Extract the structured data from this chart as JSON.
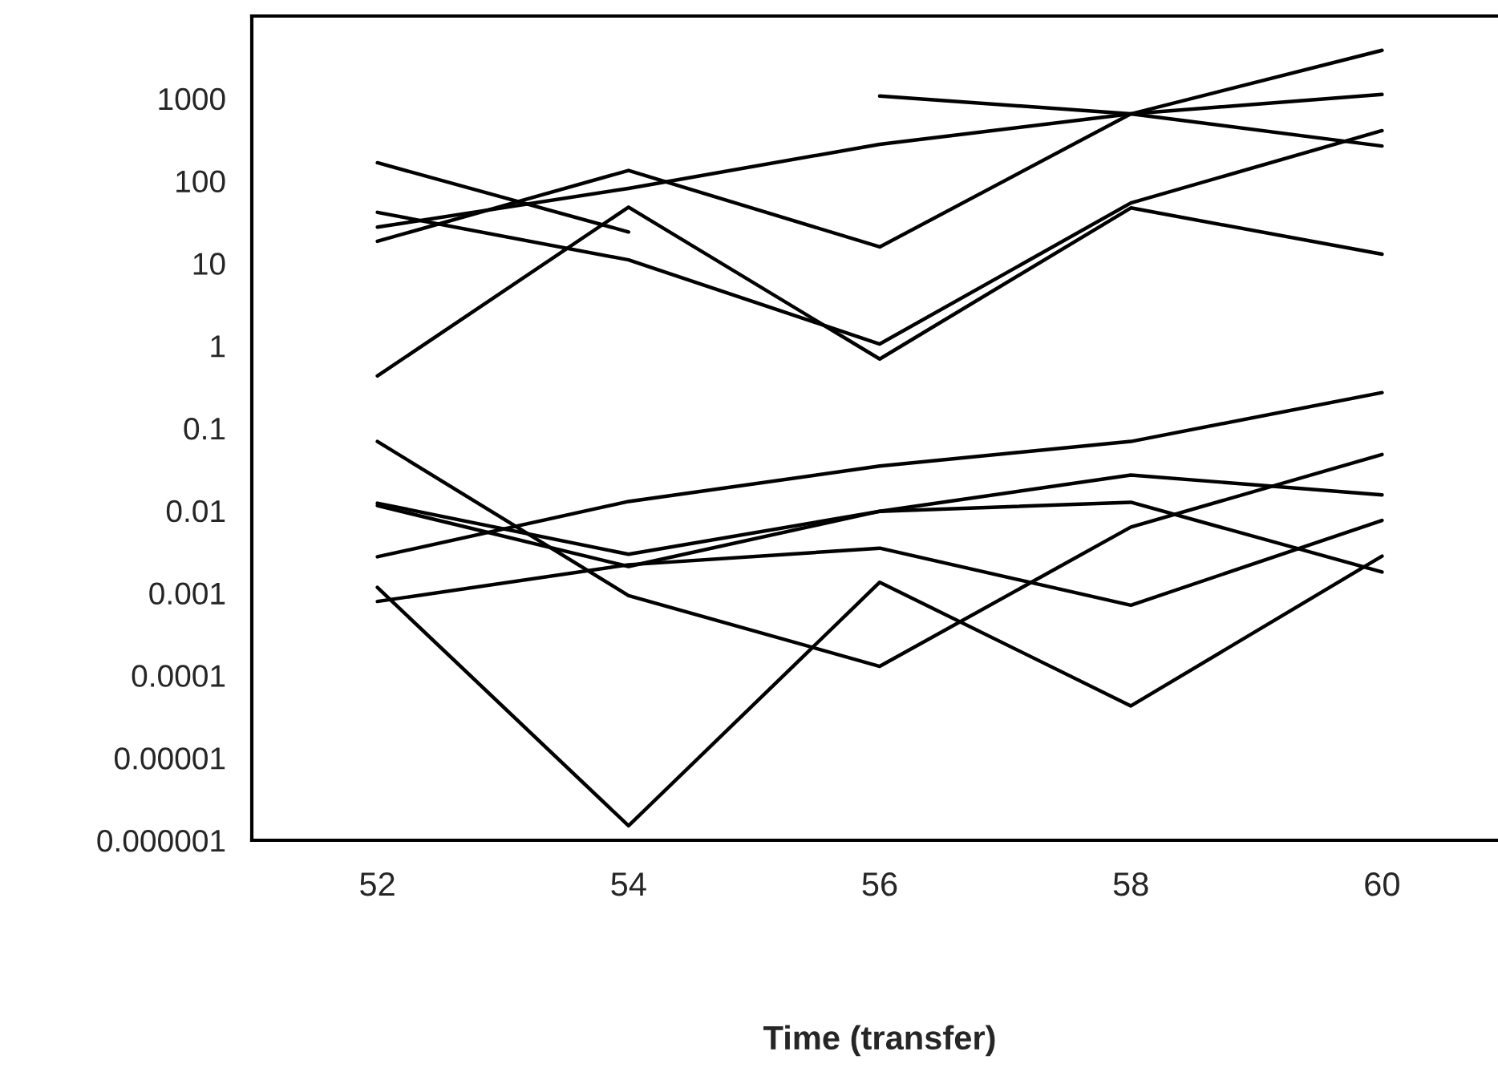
{
  "chart_data": {
    "type": "line",
    "xlabel": "Time (transfer)",
    "categories": [
      "52",
      "54",
      "56",
      "58",
      "60"
    ],
    "log": "y",
    "ylim": [
      1e-06,
      10000
    ],
    "yticks": [
      {
        "value": 1e-06,
        "label": "0.000001"
      },
      {
        "value": 1e-05,
        "label": "0.00001"
      },
      {
        "value": 0.0001,
        "label": "0.0001"
      },
      {
        "value": 0.001,
        "label": "0.001"
      },
      {
        "value": 0.01,
        "label": "0.01"
      },
      {
        "value": 0.1,
        "label": "0.1"
      },
      {
        "value": 1,
        "label": "1"
      },
      {
        "value": 10,
        "label": "10"
      },
      {
        "value": 100,
        "label": "100"
      },
      {
        "value": 1000,
        "label": "1000"
      },
      {
        "value": 10000,
        "label": null
      }
    ],
    "marker": "none",
    "line_style": "solid",
    "series": [
      {
        "color": "#000000",
        "values": [
          166,
          24,
          null,
          null,
          null
        ]
      },
      {
        "color": "#000000",
        "values": [
          null,
          null,
          1070,
          650,
          265
        ]
      },
      {
        "color": "#000000",
        "values": [
          18.5,
          134,
          15.8,
          650,
          3840
        ]
      },
      {
        "color": "#000000",
        "values": [
          27.5,
          81,
          278,
          650,
          1120
        ]
      },
      {
        "color": "#000000",
        "values": [
          41.5,
          11,
          1.05,
          54,
          407
        ]
      },
      {
        "color": "#000000",
        "values": [
          0.43,
          48,
          0.69,
          47,
          12.9
        ]
      },
      {
        "color": "#000000",
        "values": [
          0.00275,
          0.0129,
          0.0347,
          0.069,
          0.27
        ]
      },
      {
        "color": "#000000",
        "values": [
          0.069,
          0.00093,
          0.000129,
          0.0063,
          0.048
        ]
      },
      {
        "color": "#000000",
        "values": [
          0.0123,
          0.00295,
          0.0098,
          0.027,
          0.0155
        ]
      },
      {
        "color": "#000000",
        "values": [
          0.0115,
          0.0021,
          0.0098,
          0.0126,
          0.0018
        ]
      },
      {
        "color": "#000000",
        "values": [
          0.00079,
          0.0022,
          0.0035,
          0.00071,
          0.0076
        ]
      },
      {
        "color": "#000000",
        "values": [
          0.00117,
          1.5e-06,
          0.00135,
          4.27e-05,
          0.0028
        ]
      }
    ]
  }
}
